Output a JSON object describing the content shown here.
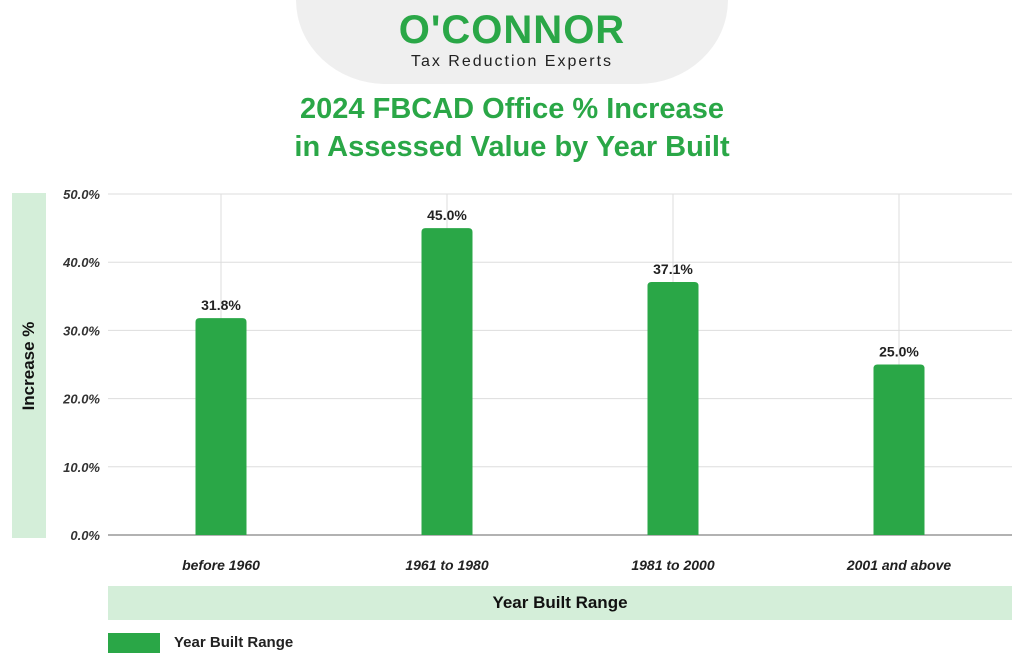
{
  "brand": {
    "name": "O'CONNOR",
    "tagline": "Tax Reduction Experts",
    "color": "#2aa747"
  },
  "colors": {
    "bar": "#2aa747",
    "band": "#d4eed9",
    "grid": "#dddddd",
    "axis": "#999999"
  },
  "chart_data": {
    "type": "bar",
    "title_line1": "2024 FBCAD Office % Increase",
    "title_line2": "in Assessed Value by Year Built",
    "xlabel": "Year Built Range",
    "ylabel": "Increase %",
    "categories": [
      "before 1960",
      "1961 to 1980",
      "1981 to 2000",
      "2001 and above"
    ],
    "series": [
      {
        "name": "Year Built Range",
        "values": [
          31.8,
          45.0,
          37.1,
          25.0
        ],
        "labels": [
          "31.8%",
          "45.0%",
          "37.1%",
          "25.0%"
        ]
      }
    ],
    "ylim": [
      0,
      50
    ],
    "yticks": [
      0,
      10,
      20,
      30,
      40,
      50
    ],
    "ytick_labels": [
      "0.0%",
      "10.0%",
      "20.0%",
      "30.0%",
      "40.0%",
      "50.0%"
    ],
    "grid": true,
    "legend": "bottom-left"
  }
}
